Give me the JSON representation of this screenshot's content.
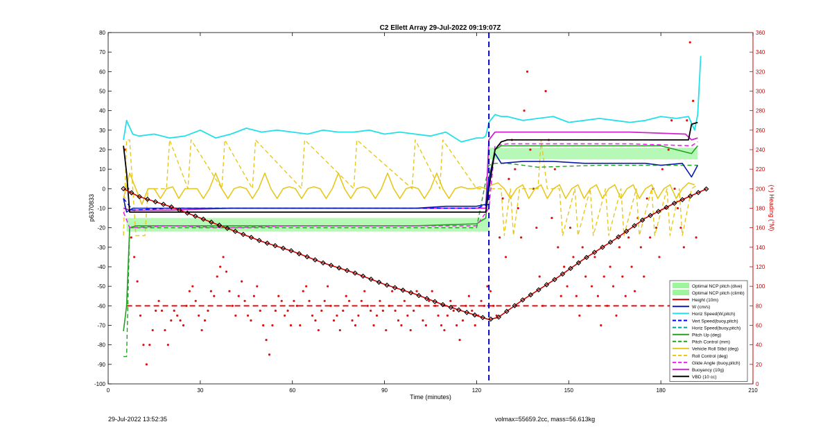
{
  "footer": {
    "left": "29-Jul-2022 13:52:35",
    "right": "volmax=55659.2cc, mass=56.613kg"
  },
  "chart_data": {
    "type": "line",
    "title": "C2 Ellett Array 29-Jul-2022 09:19:07Z",
    "xlabel": "Time (minutes)",
    "ylabel": "p6370833",
    "y2label": "(+) Heading (°M)",
    "xlim": [
      0,
      210
    ],
    "ylim": [
      -100,
      80
    ],
    "y2lim": [
      0,
      360
    ],
    "xticks": [
      0,
      30,
      60,
      90,
      120,
      150,
      180,
      210
    ],
    "yticks": [
      -100,
      -90,
      -80,
      -70,
      -60,
      -50,
      -40,
      -30,
      -20,
      -10,
      0,
      10,
      20,
      30,
      40,
      50,
      60,
      70,
      80
    ],
    "y2ticks": [
      0,
      20,
      40,
      60,
      80,
      100,
      120,
      140,
      160,
      180,
      200,
      220,
      240,
      260,
      280,
      300,
      320,
      340,
      360
    ],
    "grid": false,
    "legend_position": "bottom-right",
    "colors": {
      "left_axis": "#000000",
      "right_axis": "#cc0000",
      "optimal_band": "#9df59d",
      "height": "#cc0000",
      "w": "#0a1aa8",
      "horiz_w": "#22e0e8",
      "vert": "#0000ff",
      "horiz_buoy": "#00a0a0",
      "pitch": "#22a022",
      "roll": "#e6c81e",
      "glide": "#ee22ee",
      "buoyancy": "#cc22cc",
      "vbd": "#000000",
      "heading": "#dd1111",
      "apogee": "#0000cc"
    },
    "legend": [
      {
        "label": "Optimal NCP pitch (dive)",
        "style": "patch",
        "color": "#9df59d"
      },
      {
        "label": "Optimal NCP pitch (climb)",
        "style": "patch",
        "color": "#9df59d"
      },
      {
        "label": "Height (10m)",
        "style": "solid",
        "color": "#cc0000"
      },
      {
        "label": "W (cm/s)",
        "style": "solid",
        "color": "#0a1aa8"
      },
      {
        "label": "Horiz Speed(W,pitch)",
        "style": "solid",
        "color": "#22e0e8"
      },
      {
        "label": "Vert Speed(buoy,pitch)",
        "style": "dashed",
        "color": "#0000ff"
      },
      {
        "label": "Horiz Speed(buoy,pitch)",
        "style": "dashed",
        "color": "#00a0a0"
      },
      {
        "label": "Pitch Up (deg)",
        "style": "solid",
        "color": "#22a022"
      },
      {
        "label": "Pitch Control (mm)",
        "style": "dashed",
        "color": "#22a022"
      },
      {
        "label": "Vehicle Roll Stbd (deg)",
        "style": "solid",
        "color": "#e6c81e"
      },
      {
        "label": "Roll Control (deg)",
        "style": "dashed",
        "color": "#e6c81e"
      },
      {
        "label": "Glide Angle (buoy,pitch)",
        "style": "dashed",
        "color": "#ee22ee"
      },
      {
        "label": "Buoyancy (10g)",
        "style": "solid",
        "color": "#cc22cc"
      },
      {
        "label": "VBD (10 cc)",
        "style": "solid",
        "color": "#000000"
      }
    ],
    "apogee_time": 124,
    "heading_target": 80,
    "optimal_band_dive": {
      "x": [
        6,
        124
      ],
      "y": [
        -22,
        -15
      ]
    },
    "optimal_band_climb": {
      "x": [
        124,
        192
      ],
      "y": [
        15,
        21
      ]
    },
    "series": [
      {
        "name": "Height (10m)",
        "key": "height",
        "x": [
          5,
          10,
          20,
          30,
          40,
          50,
          60,
          70,
          80,
          90,
          100,
          110,
          120,
          124,
          127,
          135,
          145,
          155,
          165,
          175,
          185,
          195
        ],
        "values": [
          0,
          -4,
          -9,
          -15,
          -21,
          -27,
          -32,
          -38,
          -43,
          -49,
          -54,
          -60,
          -65,
          -67,
          -66,
          -57,
          -47,
          -36,
          -26,
          -15,
          -7,
          0
        ]
      },
      {
        "name": "W (cm/s)",
        "key": "w",
        "x": [
          5,
          6,
          8,
          20,
          40,
          60,
          80,
          100,
          110,
          120,
          123,
          124,
          126,
          128,
          135,
          145,
          155,
          165,
          175,
          180,
          187,
          190,
          192
        ],
        "values": [
          -5,
          -12,
          -10,
          -10,
          -10,
          -10,
          -10,
          -10,
          -9,
          -9,
          -8,
          5,
          18,
          13,
          14,
          14,
          13,
          13,
          13,
          12,
          13,
          6,
          12
        ]
      },
      {
        "name": "Horiz Speed(W,pitch)",
        "key": "horiz_w",
        "x": [
          5,
          6,
          8,
          10,
          15,
          20,
          25,
          30,
          35,
          40,
          45,
          50,
          55,
          60,
          65,
          70,
          75,
          80,
          85,
          90,
          95,
          100,
          105,
          110,
          115,
          120,
          122,
          123,
          124,
          126,
          128,
          130,
          135,
          140,
          145,
          150,
          155,
          160,
          165,
          170,
          175,
          180,
          185,
          189,
          191,
          192,
          193
        ],
        "values": [
          25,
          35,
          28,
          27,
          28,
          26,
          27,
          30,
          26,
          28,
          31,
          29,
          30,
          29,
          28,
          30,
          29,
          29,
          30,
          28,
          29,
          28,
          27,
          29,
          24,
          26,
          26,
          27,
          34,
          38,
          37,
          37,
          35,
          36,
          37,
          34,
          35,
          36,
          35,
          34,
          35,
          37,
          36,
          37,
          30,
          38,
          68
        ]
      },
      {
        "name": "Vert Speed(buoy,pitch)",
        "key": "vert",
        "x": [
          5,
          8,
          20,
          40,
          60,
          80,
          100,
          120,
          124
        ],
        "values": [
          -5,
          -11,
          -10,
          -10,
          -10,
          -10,
          -10,
          -10,
          -8
        ]
      },
      {
        "name": "Pitch Up (deg)",
        "key": "pitch",
        "x": [
          5,
          6,
          7,
          9,
          20,
          40,
          60,
          80,
          100,
          120,
          123,
          124,
          126,
          128,
          140,
          160,
          180,
          190,
          192
        ],
        "values": [
          -73,
          -60,
          -20,
          -19,
          -19,
          -19,
          -19,
          -19,
          -19,
          -18,
          -15,
          5,
          20,
          22,
          22,
          22,
          22,
          18,
          22
        ]
      },
      {
        "name": "Pitch Control (mm)",
        "key": "pitch_ctrl",
        "x": [
          5,
          6,
          7,
          9,
          120,
          124,
          126,
          130,
          140,
          160,
          180,
          192
        ],
        "values": [
          -86,
          -86,
          -20,
          -20,
          -20,
          12,
          13,
          13,
          11,
          12,
          12,
          12
        ]
      },
      {
        "name": "Glide Angle (buoy,pitch)",
        "key": "glide",
        "x": [
          5,
          7,
          20,
          40,
          60,
          80,
          100,
          120,
          124,
          126,
          130,
          150,
          170,
          190,
          192
        ],
        "values": [
          -12,
          -20,
          -19,
          -20,
          -19,
          -19,
          -19,
          -19,
          -10,
          22,
          23,
          23,
          23,
          22,
          24
        ]
      },
      {
        "name": "Buoyancy (10g)",
        "key": "buoyancy",
        "x": [
          5,
          7,
          20,
          40,
          60,
          80,
          100,
          120,
          123,
          124,
          126,
          130,
          150,
          170,
          188,
          190,
          192
        ],
        "values": [
          -10,
          -11,
          -11,
          -10,
          -10,
          -10,
          -10,
          -10,
          -10,
          25,
          29,
          29,
          29,
          29,
          28,
          25,
          26
        ]
      },
      {
        "name": "VBD (10 cc)",
        "key": "vbd",
        "x": [
          5,
          6,
          7,
          20,
          60,
          100,
          120,
          123,
          124,
          126,
          128,
          130,
          150,
          170,
          185,
          189,
          190,
          192
        ],
        "values": [
          22,
          8,
          -12,
          -12,
          -12,
          -12,
          -12,
          -12,
          0,
          20,
          24,
          25,
          25,
          25,
          25,
          25,
          33,
          34
        ]
      },
      {
        "name": "Vehicle Roll Stbd (deg)",
        "key": "roll",
        "x": [
          5,
          7,
          9,
          11,
          13,
          15,
          17,
          19,
          21,
          23,
          25,
          27,
          29,
          31,
          33,
          35,
          37,
          39,
          41,
          43,
          45,
          47,
          49,
          51,
          53,
          55,
          57,
          59,
          61,
          63,
          65,
          67,
          69,
          71,
          73,
          75,
          77,
          79,
          81,
          83,
          85,
          87,
          89,
          91,
          93,
          95,
          97,
          99,
          101,
          103,
          105,
          107,
          109,
          111,
          113,
          115,
          117,
          119,
          121,
          123,
          125,
          127,
          129,
          131,
          133,
          135,
          137,
          139,
          141,
          143,
          145,
          147,
          149,
          151,
          153,
          155,
          157,
          159,
          161,
          163,
          165,
          167,
          169,
          171,
          173,
          175,
          177,
          179,
          181,
          183,
          185,
          187,
          189,
          191
        ],
        "values": [
          -5,
          8,
          0,
          -8,
          0,
          0,
          -5,
          0,
          1,
          -5,
          0,
          0,
          0,
          -5,
          0,
          8,
          0,
          -5,
          0,
          1,
          0,
          -5,
          0,
          8,
          0,
          -5,
          0,
          1,
          0,
          -5,
          0,
          1,
          0,
          -5,
          0,
          8,
          0,
          -5,
          0,
          1,
          0,
          -5,
          0,
          8,
          0,
          -5,
          0,
          1,
          0,
          -5,
          0,
          8,
          0,
          -5,
          0,
          1,
          0,
          0,
          1,
          0,
          2,
          3,
          0,
          -5,
          0,
          2,
          -5,
          0,
          2,
          -5,
          0,
          2,
          -5,
          0,
          2,
          -5,
          0,
          2,
          -5,
          0,
          2,
          -5,
          0,
          2,
          -5,
          0,
          2,
          -5,
          0,
          2,
          -5,
          0,
          3,
          2
        ]
      },
      {
        "name": "Roll Control (deg)",
        "key": "roll_ctrl",
        "x": [
          5,
          6,
          7,
          9,
          10,
          12,
          13,
          19,
          20,
          26,
          27,
          37,
          38,
          47,
          48,
          63,
          64,
          80,
          81,
          99,
          100,
          108,
          109,
          120,
          124,
          128,
          129,
          131,
          132,
          134,
          136,
          140,
          141,
          143,
          147,
          148,
          152,
          153,
          157,
          158,
          162,
          163,
          167,
          168,
          172,
          173,
          177,
          178,
          182,
          183,
          186,
          187,
          190,
          192
        ],
        "values": [
          -24,
          25,
          25,
          -24,
          -24,
          -24,
          0,
          0,
          25,
          0,
          25,
          0,
          25,
          0,
          25,
          0,
          25,
          0,
          25,
          0,
          25,
          0,
          25,
          0,
          0,
          0,
          -24,
          0,
          -24,
          0,
          0,
          0,
          25,
          0,
          0,
          -24,
          0,
          -24,
          0,
          -24,
          0,
          -24,
          0,
          -24,
          0,
          -24,
          0,
          -24,
          0,
          -24,
          0,
          -24,
          0,
          2
        ]
      }
    ],
    "heading": {
      "name": "(+) Heading (°M)",
      "x": [
        5.5,
        6.5,
        7.5,
        8.5,
        9.5,
        10.5,
        11.5,
        12.5,
        13.5,
        14.5,
        15.5,
        16.5,
        17.5,
        18.5,
        19.5,
        20.5,
        21.5,
        22.5,
        23.5,
        24.5,
        25.5,
        26.5,
        27.5,
        28.5,
        29.5,
        30.5,
        31.5,
        32.5,
        33.5,
        34.5,
        35.5,
        36.5,
        37.5,
        38.5,
        39.5,
        40.5,
        41.5,
        42.5,
        43.5,
        44.5,
        45.5,
        46.5,
        47.5,
        48.5,
        49.5,
        50.5,
        51.5,
        52.5,
        53.5,
        54.5,
        55.5,
        56.5,
        57.5,
        58.5,
        59.5,
        60.5,
        61.5,
        62.5,
        63.5,
        64.5,
        65.5,
        66.5,
        67.5,
        68.5,
        69.5,
        70.5,
        71.5,
        72.5,
        73.5,
        74.5,
        75.5,
        76.5,
        77.5,
        78.5,
        79.5,
        80.5,
        81.5,
        82.5,
        83.5,
        84.5,
        85.5,
        86.5,
        87.5,
        88.5,
        89.5,
        90.5,
        91.5,
        92.5,
        93.5,
        94.5,
        95.5,
        96.5,
        97.5,
        98.5,
        99.5,
        100.5,
        101.5,
        102.5,
        103.5,
        104.5,
        105.5,
        106.5,
        107.5,
        108.5,
        109.5,
        110.5,
        111.5,
        112.5,
        113.5,
        114.5,
        115.5,
        116.5,
        117.5,
        118.5,
        119.5,
        120.5,
        121.5,
        122.5,
        123.5,
        124.5,
        125.5,
        126.5,
        127.5,
        128.5,
        129.5,
        130.5,
        131.5,
        132.5,
        133.5,
        134.5,
        135.5,
        136.5,
        137.5,
        138.5,
        139.5,
        140.5,
        141.5,
        142.5,
        143.5,
        144.5,
        145.5,
        146.5,
        147.5,
        148.5,
        149.5,
        150.5,
        151.5,
        152.5,
        153.5,
        154.5,
        155.5,
        156.5,
        157.5,
        158.5,
        159.5,
        160.5,
        161.5,
        162.5,
        163.5,
        164.5,
        165.5,
        166.5,
        167.5,
        168.5,
        169.5,
        170.5,
        171.5,
        172.5,
        173.5,
        174.5,
        175.5,
        176.5,
        177.5,
        178.5,
        179.5,
        180.5,
        181.5,
        182.5,
        183.5,
        184.5,
        185.5,
        186.5,
        187.5,
        188.5,
        189.5,
        190.5,
        191.5
      ],
      "values": [
        240,
        200,
        150,
        130,
        105,
        70,
        40,
        20,
        40,
        55,
        75,
        85,
        75,
        55,
        40,
        65,
        75,
        70,
        65,
        60,
        80,
        95,
        100,
        85,
        70,
        55,
        65,
        75,
        95,
        90,
        110,
        120,
        130,
        115,
        95,
        80,
        70,
        90,
        105,
        85,
        70,
        65,
        90,
        100,
        75,
        60,
        45,
        30,
        60,
        75,
        90,
        85,
        70,
        75,
        60,
        85,
        80,
        60,
        95,
        100,
        85,
        70,
        65,
        55,
        75,
        85,
        100,
        80,
        65,
        70,
        55,
        75,
        90,
        85,
        65,
        60,
        70,
        85,
        95,
        80,
        75,
        60,
        70,
        85,
        75,
        55,
        80,
        95,
        75,
        65,
        60,
        85,
        70,
        55,
        75,
        95,
        80,
        65,
        60,
        85,
        95,
        80,
        70,
        60,
        55,
        70,
        85,
        75,
        60,
        45,
        65,
        80,
        90,
        75,
        60,
        70,
        85,
        80,
        100,
        95,
        80,
        70,
        150,
        190,
        130,
        210,
        250,
        220,
        180,
        150,
        280,
        320,
        240,
        200,
        160,
        110,
        80,
        300,
        250,
        170,
        220,
        140,
        90,
        120,
        100,
        160,
        130,
        90,
        70,
        140,
        110,
        80,
        100,
        130,
        90,
        60,
        110,
        80,
        120,
        100,
        70,
        140,
        110,
        90,
        150,
        120,
        95,
        170,
        140,
        110,
        190,
        150,
        200,
        160,
        130,
        220,
        180,
        240,
        270,
        200,
        180,
        160,
        140,
        270,
        350,
        290,
        150
      ]
    }
  }
}
